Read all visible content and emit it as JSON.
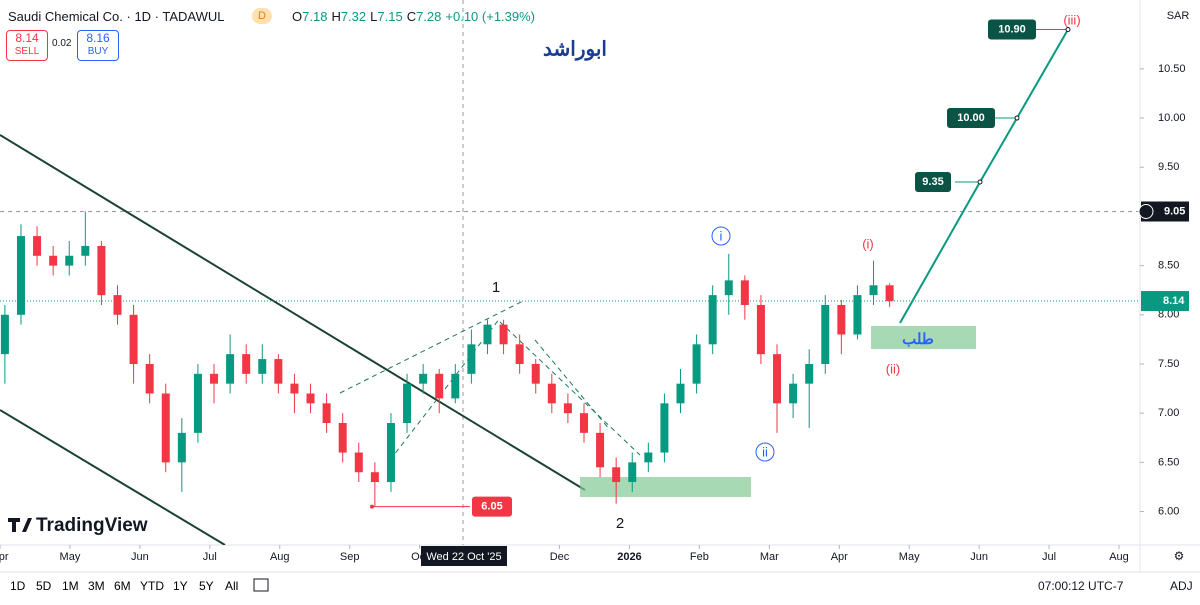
{
  "header": {
    "symbol": "Saudi Chemical Co. · 1D · TADAWUL",
    "badge": "D",
    "ohlc": [
      {
        "k": "O",
        "v": "7.18"
      },
      {
        "k": "H",
        "v": "7.32"
      },
      {
        "k": "L",
        "v": "7.15"
      },
      {
        "k": "C",
        "v": "7.28"
      }
    ],
    "change": "+0.10 (+1.39%)"
  },
  "sell": {
    "price": "8.14",
    "label": "SELL"
  },
  "spread": "0.02",
  "buy": {
    "price": "8.16",
    "label": "BUY"
  },
  "currency": "SAR",
  "watermark": "ابوراشد",
  "logo": "TradingView",
  "toolbar": {
    "ranges": [
      "1D",
      "5D",
      "1M",
      "3M",
      "6M",
      "YTD",
      "1Y",
      "5Y",
      "All"
    ],
    "time": "07:00:12 UTC-7",
    "adj": "ADJ"
  },
  "chart_data": {
    "type": "candlestick",
    "up_color": "#089981",
    "down_color": "#f23645",
    "x": [
      0.07,
      0.3,
      0.53,
      0.76,
      0.99,
      1.22,
      1.45,
      1.68,
      1.91,
      2.14,
      2.37,
      2.6,
      2.83,
      3.06,
      3.29,
      3.52,
      3.75,
      3.98,
      4.21,
      4.44,
      4.67,
      4.9,
      5.13,
      5.36,
      5.59,
      5.82,
      6.05,
      6.28,
      6.51,
      6.74,
      6.97,
      7.2,
      7.43,
      7.66,
      7.89,
      8.12,
      8.35,
      8.58,
      8.81,
      9.04,
      9.27,
      9.5,
      9.73,
      9.96,
      10.19,
      10.42,
      10.65,
      10.88,
      11.11,
      11.34,
      11.57,
      11.8,
      12.03,
      12.26,
      12.49,
      12.72
    ],
    "open": [
      7.6,
      8.0,
      8.8,
      8.6,
      8.5,
      8.6,
      8.7,
      8.2,
      8.0,
      7.5,
      7.2,
      6.5,
      6.8,
      7.4,
      7.3,
      7.6,
      7.4,
      7.55,
      7.3,
      7.2,
      7.1,
      6.9,
      6.6,
      6.4,
      6.3,
      6.9,
      7.3,
      7.4,
      7.15,
      7.4,
      7.7,
      7.9,
      7.7,
      7.5,
      7.3,
      7.1,
      7.0,
      6.8,
      6.45,
      6.3,
      6.5,
      6.6,
      7.1,
      7.3,
      7.7,
      8.2,
      8.35,
      8.1,
      7.6,
      7.1,
      7.3,
      7.5,
      8.1,
      7.8,
      8.2,
      8.3
    ],
    "high": [
      8.1,
      8.92,
      8.9,
      8.7,
      8.75,
      9.05,
      8.75,
      8.3,
      8.1,
      7.6,
      7.3,
      6.95,
      7.5,
      7.5,
      7.8,
      7.7,
      7.7,
      7.6,
      7.4,
      7.3,
      7.2,
      7.0,
      6.7,
      6.5,
      7.0,
      7.4,
      7.5,
      7.45,
      7.5,
      7.85,
      7.95,
      7.95,
      7.8,
      7.55,
      7.4,
      7.2,
      7.1,
      6.9,
      6.55,
      6.6,
      6.7,
      7.2,
      7.45,
      7.8,
      8.3,
      8.62,
      8.4,
      8.2,
      7.7,
      7.4,
      7.65,
      8.2,
      8.15,
      8.3,
      8.55,
      8.32
    ],
    "low": [
      7.3,
      7.9,
      8.5,
      8.4,
      8.4,
      8.5,
      8.1,
      7.9,
      7.3,
      7.1,
      6.4,
      6.2,
      6.7,
      7.1,
      7.2,
      7.3,
      7.3,
      7.2,
      7.0,
      7.0,
      6.8,
      6.5,
      6.3,
      6.05,
      6.2,
      6.8,
      7.2,
      7.0,
      7.1,
      7.3,
      7.6,
      7.6,
      7.4,
      7.2,
      7.0,
      6.9,
      6.7,
      6.35,
      6.08,
      6.2,
      6.4,
      6.5,
      7.0,
      7.2,
      7.6,
      8.0,
      7.95,
      7.5,
      6.8,
      6.95,
      6.85,
      7.4,
      7.6,
      7.75,
      8.1,
      8.08
    ],
    "close": [
      8.0,
      8.8,
      8.6,
      8.5,
      8.6,
      8.7,
      8.2,
      8.0,
      7.5,
      7.2,
      6.5,
      6.8,
      7.4,
      7.3,
      7.6,
      7.4,
      7.55,
      7.3,
      7.2,
      7.1,
      6.9,
      6.6,
      6.4,
      6.3,
      6.9,
      7.3,
      7.4,
      7.15,
      7.4,
      7.7,
      7.9,
      7.7,
      7.5,
      7.3,
      7.1,
      7.0,
      6.8,
      6.45,
      6.3,
      6.5,
      6.6,
      7.1,
      7.3,
      7.7,
      8.2,
      8.35,
      8.1,
      7.6,
      7.1,
      7.3,
      7.5,
      8.1,
      7.8,
      8.2,
      8.3,
      8.14
    ],
    "xlim": [
      0,
      16.3
    ],
    "xticks": [
      {
        "value": 0,
        "label": "Apr"
      },
      {
        "value": 1,
        "label": "May"
      },
      {
        "value": 2,
        "label": "Jun"
      },
      {
        "value": 3,
        "label": "Jul"
      },
      {
        "value": 4,
        "label": "Aug"
      },
      {
        "value": 5,
        "label": "Sep"
      },
      {
        "value": 6,
        "label": "Oct"
      },
      {
        "value": 8,
        "label": "Dec"
      },
      {
        "value": 9,
        "label": "2026"
      },
      {
        "value": 10,
        "label": "Feb"
      },
      {
        "value": 11,
        "label": "Mar"
      },
      {
        "value": 12,
        "label": "Apr"
      },
      {
        "value": 13,
        "label": "May"
      },
      {
        "value": 14,
        "label": "Jun"
      },
      {
        "value": 15,
        "label": "Jul"
      },
      {
        "value": 16,
        "label": "Aug"
      }
    ],
    "ylim": [
      5.66,
      11.2
    ],
    "yticks": [
      {
        "value": 6,
        "label": "6.00"
      },
      {
        "value": 6.5,
        "label": "6.50"
      },
      {
        "value": 7,
        "label": "7.00"
      },
      {
        "value": 7.5,
        "label": "7.50"
      },
      {
        "value": 8,
        "label": "8.00"
      },
      {
        "value": 8.5,
        "label": "8.50"
      },
      {
        "value": 9,
        "label": "9.00"
      },
      {
        "value": 9.5,
        "label": "9.50"
      },
      {
        "value": 10,
        "label": "10.00"
      },
      {
        "value": 10.5,
        "label": "10.50"
      }
    ],
    "last_price": {
      "value": 8.14,
      "label": "8.14"
    },
    "crosshair": {
      "price": {
        "value": 9.05,
        "label": "9.05"
      },
      "date": "Wed 22 Oct '25"
    },
    "targets": [
      {
        "value": 9.35,
        "label": "9.35"
      },
      {
        "value": 10,
        "label": "10.00"
      },
      {
        "value": 10.9,
        "label": "10.90"
      }
    ],
    "low_label": {
      "value": 6.05,
      "label": "6.05"
    },
    "waves": [
      "1",
      "2",
      "i",
      "ii",
      "(i)",
      "(ii)",
      "(iii)"
    ],
    "zone_label": "طلب"
  }
}
